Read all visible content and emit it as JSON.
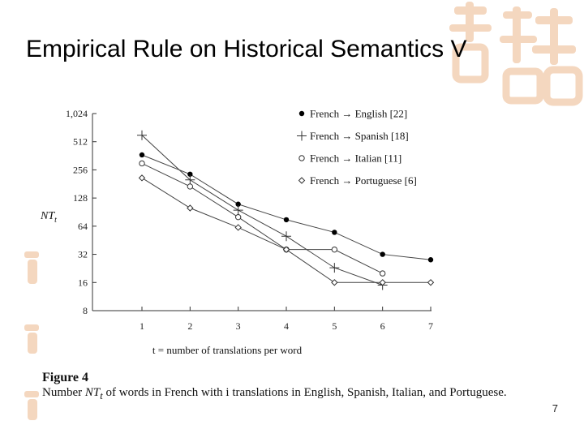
{
  "slide": {
    "title": "Empirical Rule on Historical Semantics V",
    "page_number": "7",
    "accent_color": "#f4d7bf"
  },
  "figure": {
    "label": "Figure 4",
    "caption_prefix": "Number ",
    "caption_symbol": "NT",
    "caption_subscript": "t",
    "caption_suffix": " of words in French with i translations in English, Spanish, Italian, and Portuguese."
  },
  "chart_data": {
    "type": "line",
    "title": "",
    "xlabel": "t = number of translations per word",
    "ylabel": "NT_t",
    "ylabel_main": "NT",
    "ylabel_sub": "t",
    "y_scale": "log2",
    "ylim": [
      8,
      1024
    ],
    "xlim": [
      1,
      7
    ],
    "x_ticks": [
      "1",
      "2",
      "3",
      "4",
      "5",
      "6",
      "7"
    ],
    "y_ticks": [
      {
        "value": 1024,
        "label": "1,024"
      },
      {
        "value": 512,
        "label": "512"
      },
      {
        "value": 256,
        "label": "256"
      },
      {
        "value": 128,
        "label": "128"
      },
      {
        "value": 64,
        "label": "64"
      },
      {
        "value": 32,
        "label": "32"
      },
      {
        "value": 16,
        "label": "16"
      },
      {
        "value": 8,
        "label": "8"
      }
    ],
    "grid": false,
    "legend_position": "top-right",
    "series": [
      {
        "name": "French → English [22]",
        "marker": "filled-circle",
        "x": [
          1,
          2,
          3,
          4,
          5,
          6,
          7
        ],
        "values": [
          370,
          230,
          110,
          75,
          55,
          32,
          28
        ]
      },
      {
        "name": "French → Spanish [18]",
        "marker": "plus",
        "x": [
          1,
          2,
          3,
          4,
          5,
          6
        ],
        "values": [
          600,
          200,
          95,
          50,
          23,
          15
        ]
      },
      {
        "name": "French → Italian [11]",
        "marker": "open-circle",
        "x": [
          1,
          2,
          3,
          4,
          5,
          6
        ],
        "values": [
          300,
          170,
          80,
          36,
          36,
          20
        ]
      },
      {
        "name": "French → Portuguese [6]",
        "marker": "diamond",
        "x": [
          1,
          2,
          3,
          4,
          5,
          6,
          7
        ],
        "values": [
          210,
          100,
          62,
          36,
          16,
          16,
          16
        ]
      }
    ]
  }
}
